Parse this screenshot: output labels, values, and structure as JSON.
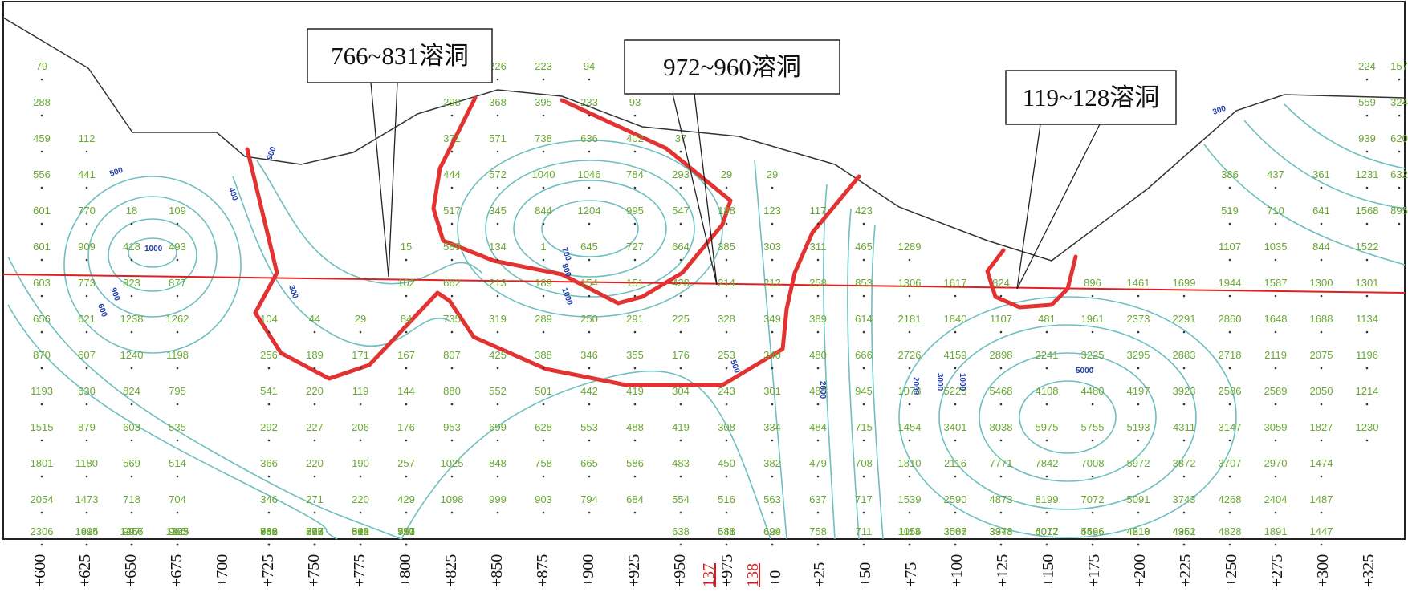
{
  "figure": {
    "callouts": [
      "766~831溶洞",
      "972~960溶洞",
      "119~128溶洞"
    ],
    "x_labels": [
      "+600",
      "+625",
      "+650",
      "+675",
      "+700",
      "+725",
      "+750",
      "+775",
      "+800",
      "+825",
      "+850",
      "+875",
      "+900",
      "+925",
      "+950",
      "137",
      "+975",
      "138",
      "+0",
      "+25",
      "+50",
      "+75",
      "+100",
      "+125",
      "+150",
      "+175",
      "+200",
      "+225",
      "+250",
      "+275",
      "+300",
      "+325"
    ],
    "red_labels": [
      "137",
      "138"
    ],
    "contour_labels": [
      "500",
      "400",
      "1000",
      "900",
      "600",
      "300",
      "700",
      "800",
      "1000",
      "600",
      "900",
      "500",
      "5000",
      "2000",
      "3000",
      "1000",
      "2000",
      "300"
    ],
    "grid_columns": [
      [
        "79",
        "288",
        "459",
        "556",
        "601",
        "601",
        "603",
        "656",
        "870",
        "1193",
        "1515",
        "1801",
        "2054",
        "2306"
      ],
      [
        "",
        "112",
        "441",
        "770",
        "909",
        "773",
        "621",
        "607",
        "630",
        "879",
        "1180",
        "1473",
        "1694",
        "1915"
      ],
      [
        "",
        "",
        "18",
        "418",
        "823",
        "1238",
        "1240",
        "824",
        "603",
        "569",
        "718",
        "997",
        "1266",
        "1457"
      ],
      [
        "",
        "",
        "109",
        "493",
        "877",
        "1262",
        "1198",
        "795",
        "535",
        "514",
        "704",
        "966",
        "1163",
        "1325"
      ],
      [
        "",
        "",
        "",
        "",
        "",
        "",
        "",
        "",
        "",
        "",
        "",
        "",
        "",
        ""
      ],
      [
        "",
        "",
        "",
        "104",
        "256",
        "541",
        "292",
        "366",
        "346",
        "362",
        "539",
        "746",
        "866",
        "988"
      ],
      [
        "",
        "",
        "",
        "44",
        "189",
        "220",
        "227",
        "220",
        "271",
        "297",
        "516",
        "662",
        "767",
        "873"
      ],
      [
        "",
        "",
        "",
        "29",
        "171",
        "119",
        "206",
        "190",
        "220",
        "312",
        "510",
        "604",
        "698",
        "842"
      ],
      [
        "",
        "",
        "15",
        "102",
        "84",
        "167",
        "144",
        "176",
        "257",
        "429",
        "513",
        "597",
        "750",
        "951"
      ],
      [
        "226",
        "298",
        "371",
        "444",
        "517",
        "589",
        "662",
        "735",
        "807",
        "880",
        "953",
        "1025",
        "1098"
      ],
      [
        "226",
        "368",
        "571",
        "572",
        "345",
        "134",
        "213",
        "319",
        "425",
        "552",
        "699",
        "848",
        "999"
      ],
      [
        "223",
        "395",
        "738",
        "1040",
        "844",
        "1",
        "189",
        "289",
        "388",
        "501",
        "628",
        "758",
        "903"
      ],
      [
        "94",
        "233",
        "636",
        "1046",
        "1204",
        "645",
        "154",
        "250",
        "346",
        "442",
        "553",
        "665",
        "794"
      ],
      [
        "93",
        "402",
        "784",
        "995",
        "727",
        "151",
        "291",
        "355",
        "419",
        "488",
        "586",
        "684"
      ],
      [
        "37",
        "293",
        "547",
        "664",
        "428",
        "225",
        "176",
        "304",
        "419",
        "483",
        "554",
        "638"
      ],
      [
        "29",
        "188",
        "385",
        "214",
        "328",
        "253",
        "243",
        "308",
        "450",
        "516",
        "581",
        "648"
      ],
      [
        "29",
        "123",
        "303",
        "212",
        "349",
        "340",
        "301",
        "334",
        "382",
        "563",
        "629",
        "694"
      ],
      [
        "117",
        "311",
        "258",
        "389",
        "480",
        "480",
        "484",
        "479",
        "637",
        "758"
      ],
      [
        "423",
        "465",
        "853",
        "614",
        "666",
        "945",
        "715",
        "708",
        "717",
        "711"
      ],
      [
        "1289",
        "1306",
        "2181",
        "2726",
        "1078",
        "1454",
        "1810",
        "1539",
        "1113",
        "1056"
      ],
      [
        "1617",
        "1840",
        "4159",
        "5225",
        "3401",
        "2116",
        "2590",
        "3085",
        "3507"
      ],
      [
        "824",
        "1107",
        "2898",
        "5468",
        "8038",
        "7771",
        "4873",
        "3378",
        "3943"
      ],
      [
        "481",
        "2241",
        "4108",
        "5975",
        "7842",
        "8199",
        "6017",
        "4072"
      ],
      [
        "896",
        "1961",
        "3225",
        "4480",
        "5755",
        "7008",
        "7072",
        "5596",
        "4466"
      ],
      [
        "1461",
        "2373",
        "3295",
        "4197",
        "5193",
        "5972",
        "5091",
        "4210",
        "4813"
      ],
      [
        "1699",
        "2291",
        "2883",
        "3923",
        "4311",
        "3872",
        "3743",
        "4352",
        "4961"
      ],
      [
        "386",
        "519",
        "1107",
        "1944",
        "2860",
        "2718",
        "2586",
        "3147",
        "3707",
        "4268",
        "4828"
      ],
      [
        "437",
        "710",
        "1035",
        "1587",
        "1648",
        "2119",
        "2589",
        "3059",
        "2970",
        "2404",
        "1891"
      ],
      [
        "361",
        "641",
        "844",
        "1300",
        "1688",
        "2075",
        "2050",
        "1827",
        "1474",
        "1487",
        "1447"
      ],
      [
        "224",
        "559",
        "939",
        "1231",
        "1568",
        "1522",
        "1301",
        "1134",
        "1196",
        "1214",
        "1230"
      ],
      [
        "157",
        "324",
        "620",
        "632",
        "895",
        "",
        "",
        "",
        "",
        "",
        ""
      ]
    ]
  }
}
